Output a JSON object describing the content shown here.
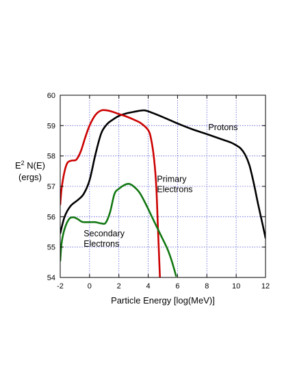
{
  "chart_data": {
    "type": "line",
    "xlabel": "Particle Energy [log(MeV)]",
    "ylabel_line1": "E",
    "ylabel_sup": "2",
    "ylabel_rest": " N(E)",
    "ylabel_line2": "(ergs)",
    "xlim": [
      -2,
      12
    ],
    "ylim": [
      54,
      60
    ],
    "xticks": [
      -2,
      0,
      2,
      4,
      6,
      8,
      10,
      12
    ],
    "yticks": [
      54,
      55,
      56,
      57,
      58,
      59,
      60
    ],
    "grid": true,
    "annotations": [
      {
        "lines": [
          "Protons"
        ],
        "x": 8.1,
        "y": 58.85
      },
      {
        "lines": [
          "Primary",
          "Electrons"
        ],
        "x": 4.6,
        "y": 57.15
      },
      {
        "lines": [
          "Secondary",
          "Electrons"
        ],
        "x": -0.4,
        "y": 55.35
      }
    ],
    "series": [
      {
        "color": "#000000",
        "points": [
          [
            -2,
            55.45
          ],
          [
            -1.7,
            56.0
          ],
          [
            -1.3,
            56.35
          ],
          [
            -0.8,
            56.55
          ],
          [
            -0.4,
            56.75
          ],
          [
            0,
            57.2
          ],
          [
            0.4,
            58.05
          ],
          [
            0.8,
            58.75
          ],
          [
            1.2,
            59.05
          ],
          [
            1.6,
            59.2
          ],
          [
            2.0,
            59.32
          ],
          [
            2.5,
            59.4
          ],
          [
            3.0,
            59.45
          ],
          [
            3.6,
            59.5
          ],
          [
            4.0,
            59.47
          ],
          [
            5.0,
            59.28
          ],
          [
            6.0,
            59.07
          ],
          [
            7.0,
            58.88
          ],
          [
            8.0,
            58.72
          ],
          [
            9.0,
            58.55
          ],
          [
            9.6,
            58.45
          ],
          [
            10.0,
            58.35
          ],
          [
            10.3,
            58.25
          ],
          [
            10.6,
            58.05
          ],
          [
            10.9,
            57.7
          ],
          [
            11.2,
            57.1
          ],
          [
            11.5,
            56.4
          ],
          [
            11.8,
            55.75
          ],
          [
            12.0,
            55.3
          ]
        ]
      },
      {
        "color": "#cc0000",
        "points": [
          [
            -2,
            56.4
          ],
          [
            -1.9,
            56.95
          ],
          [
            -1.7,
            57.5
          ],
          [
            -1.5,
            57.78
          ],
          [
            -1.2,
            57.85
          ],
          [
            -0.9,
            57.88
          ],
          [
            -0.6,
            58.15
          ],
          [
            -0.3,
            58.6
          ],
          [
            0,
            59.0
          ],
          [
            0.4,
            59.35
          ],
          [
            0.8,
            59.5
          ],
          [
            1.2,
            59.5
          ],
          [
            1.6,
            59.45
          ],
          [
            2.0,
            59.38
          ],
          [
            2.5,
            59.3
          ],
          [
            3.0,
            59.2
          ],
          [
            3.5,
            59.08
          ],
          [
            4.0,
            58.85
          ],
          [
            4.2,
            58.55
          ],
          [
            4.4,
            57.9
          ],
          [
            4.55,
            57.0
          ],
          [
            4.65,
            55.8
          ],
          [
            4.75,
            54.6
          ],
          [
            4.8,
            54.0
          ]
        ]
      },
      {
        "color": "#117711",
        "points": [
          [
            -2,
            54.55
          ],
          [
            -1.9,
            55.15
          ],
          [
            -1.7,
            55.6
          ],
          [
            -1.4,
            55.92
          ],
          [
            -1.1,
            55.98
          ],
          [
            -0.8,
            55.92
          ],
          [
            -0.5,
            55.83
          ],
          [
            0,
            55.82
          ],
          [
            0.4,
            55.82
          ],
          [
            0.8,
            55.78
          ],
          [
            1.1,
            55.8
          ],
          [
            1.4,
            56.15
          ],
          [
            1.7,
            56.75
          ],
          [
            2.0,
            56.92
          ],
          [
            2.4,
            57.05
          ],
          [
            2.7,
            57.08
          ],
          [
            3.0,
            57.0
          ],
          [
            3.4,
            56.8
          ],
          [
            3.8,
            56.45
          ],
          [
            4.3,
            55.95
          ],
          [
            4.8,
            55.45
          ],
          [
            5.3,
            54.95
          ],
          [
            5.6,
            54.55
          ],
          [
            5.9,
            54.05
          ]
        ]
      }
    ]
  }
}
